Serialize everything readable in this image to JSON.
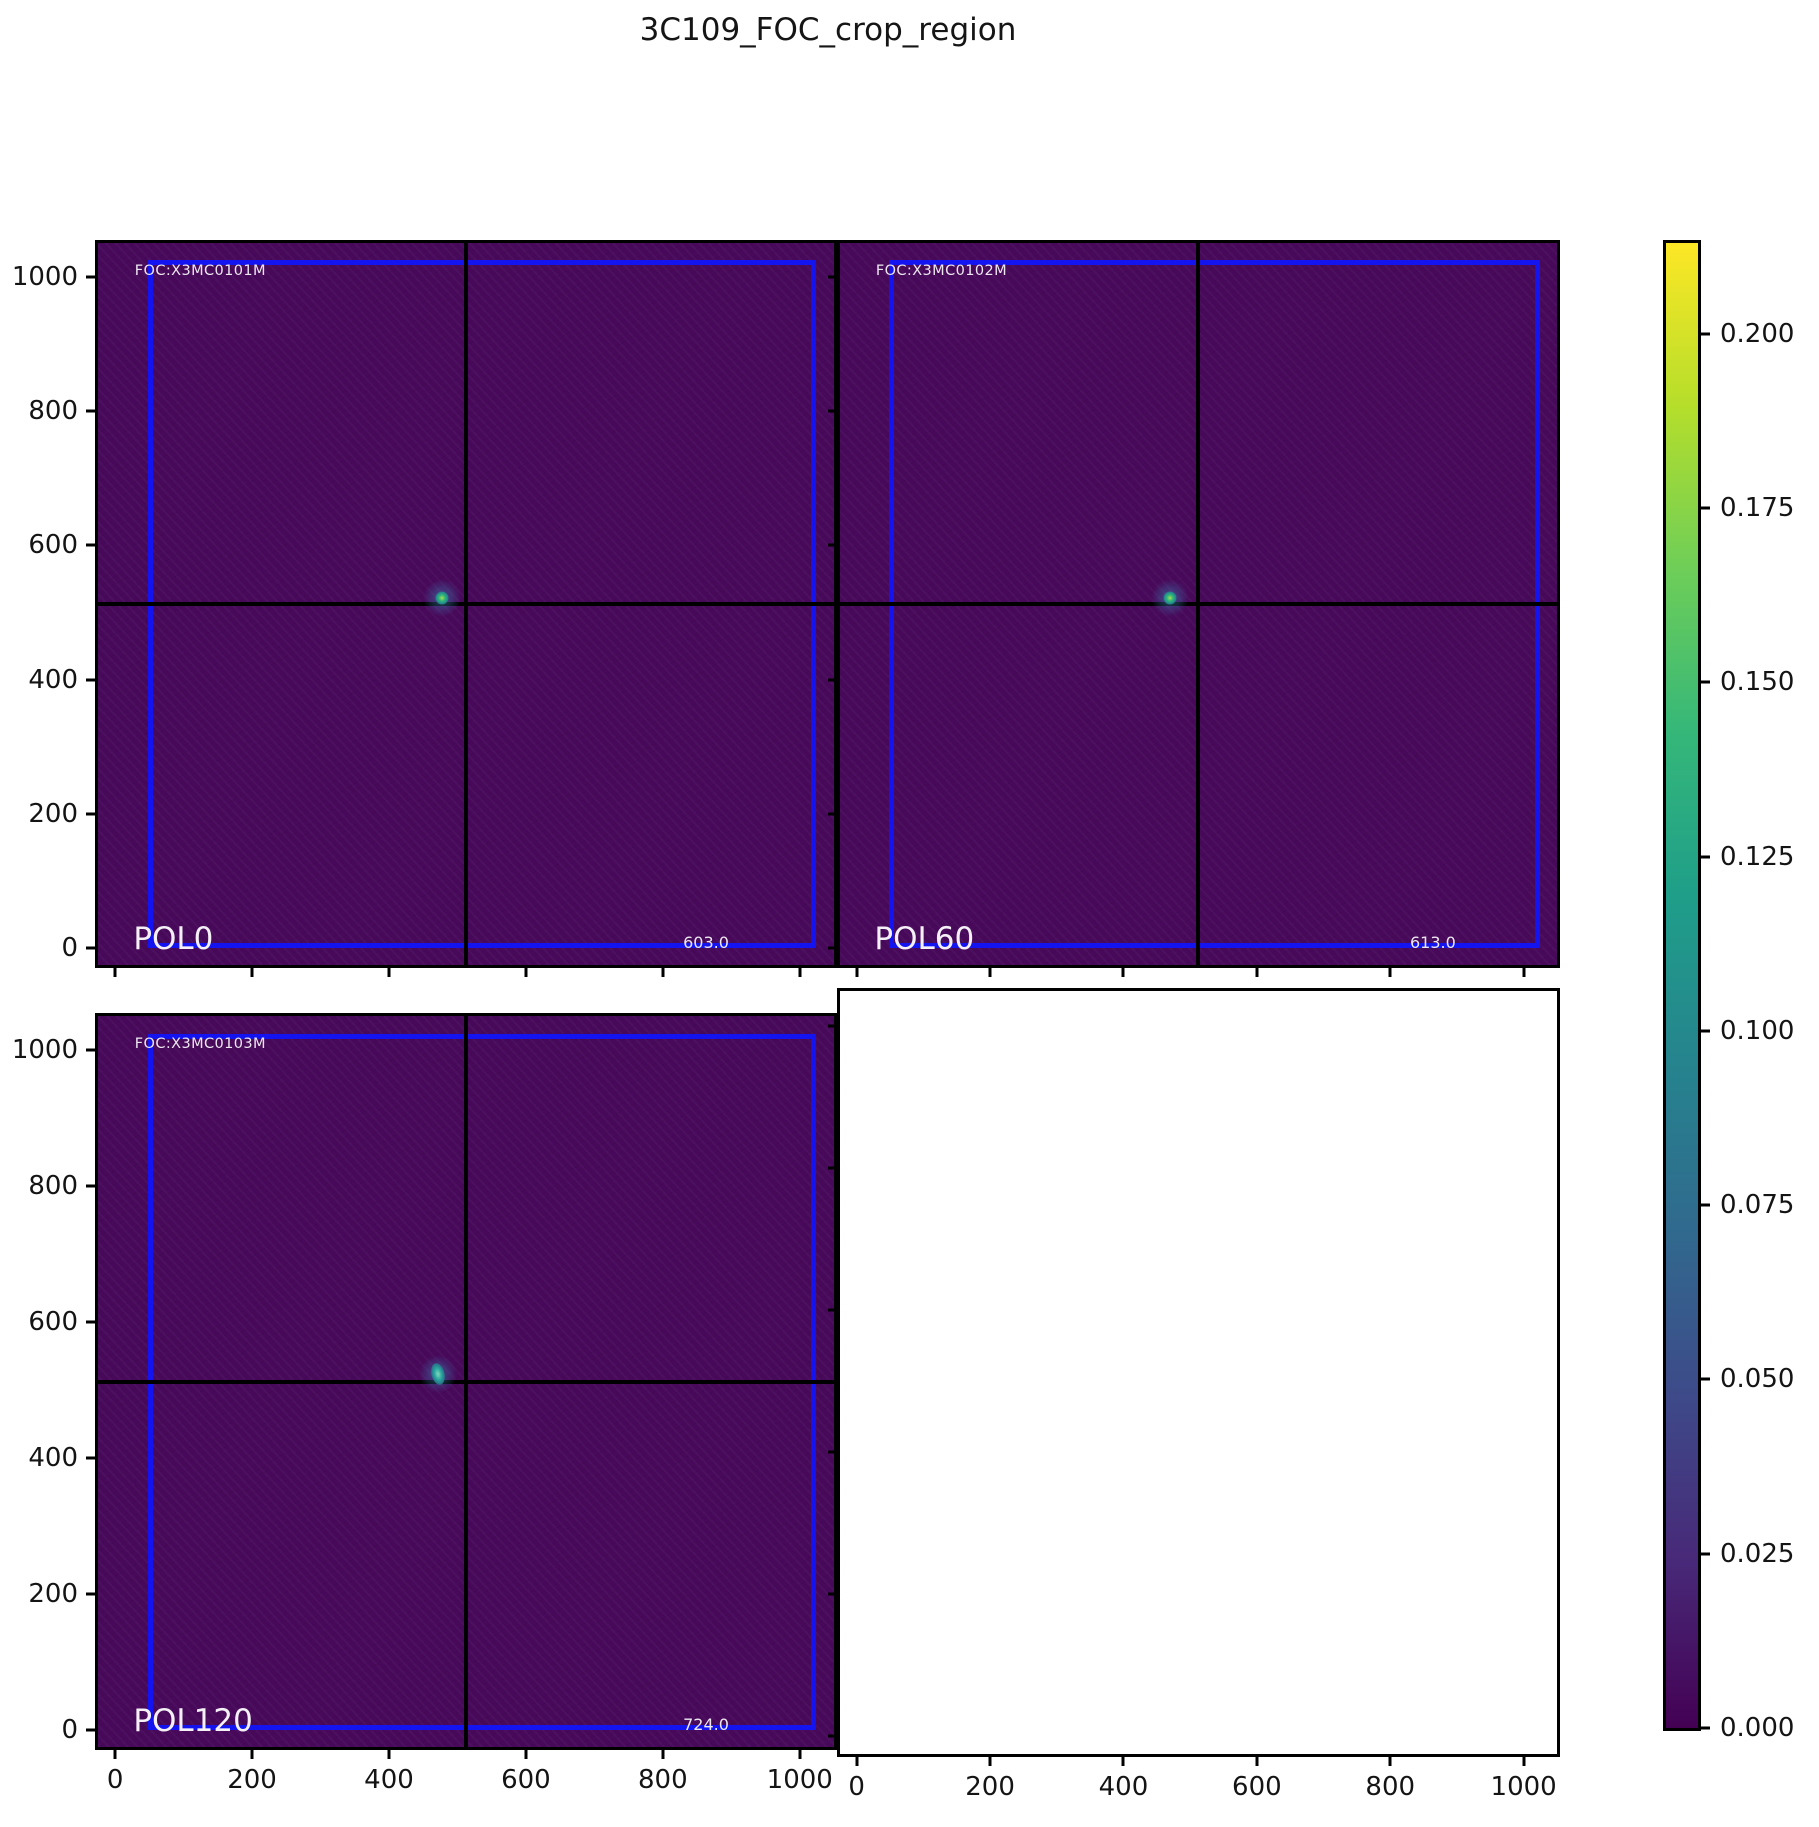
{
  "title": "3C109_FOC_crop_region",
  "panels": [
    {
      "position": "top-left",
      "foc_label": "FOC:X3MC0101M",
      "pol_label": "POL0",
      "value_label": "603.0",
      "empty": false
    },
    {
      "position": "top-right",
      "foc_label": "FOC:X3MC0102M",
      "pol_label": "POL60",
      "value_label": "613.0",
      "empty": false
    },
    {
      "position": "bottom-left",
      "foc_label": "FOC:X3MC0103M",
      "pol_label": "POL120",
      "value_label": "724.0",
      "empty": false
    },
    {
      "position": "bottom-right",
      "empty": true
    }
  ],
  "axes": {
    "tick_values": [
      0,
      200,
      400,
      600,
      800,
      1000
    ],
    "x_tick_labels": [
      "0",
      "200",
      "400",
      "600",
      "800",
      "1000"
    ],
    "y_tick_labels": [
      "0",
      "200",
      "400",
      "600",
      "800",
      "1000"
    ]
  },
  "colorbar": {
    "colormap": "viridis",
    "vmin": 0.0,
    "vmax": 0.213,
    "tick_values": [
      0.2,
      0.175,
      0.15,
      0.125,
      0.1,
      0.075,
      0.05,
      0.025,
      0.0
    ],
    "tick_labels": [
      "0.200",
      "0.175",
      "0.150",
      "0.125",
      "0.100",
      "0.075",
      "0.050",
      "0.025",
      "0.000"
    ]
  },
  "colors": {
    "figure_background": "#ffffff",
    "image_background_viridis_floor": "#48095b",
    "crop_rectangle_blue": "#1414f0",
    "crosshair_black": "#000000",
    "panel_text_white": "#f4f0f6",
    "colormap_low": "#440154",
    "colormap_high": "#fde725"
  },
  "chart_data": {
    "type": "heatmap",
    "title": "3C109_FOC_crop_region",
    "layout": "2x2 grid of image subplots; bottom-right axes is empty/blank; shared 0-1000 pixel axes; vertical colorbar on the right",
    "colormap": "viridis",
    "color_range": [
      0.0,
      0.213
    ],
    "colorbar_ticks": [
      0.0,
      0.025,
      0.05,
      0.075,
      0.1,
      0.125,
      0.15,
      0.175,
      0.2
    ],
    "x_range": [
      -25,
      1050
    ],
    "y_range": [
      -25,
      1050
    ],
    "x_ticks": [
      0,
      200,
      400,
      600,
      800,
      1000
    ],
    "y_ticks": [
      0,
      200,
      400,
      600,
      800,
      1000
    ],
    "crop_region_rect": {
      "x": [
        48,
        1024
      ],
      "y": [
        0,
        1024
      ]
    },
    "crosshair_xy": [
      512,
      512
    ],
    "panels": [
      {
        "pol_angle": "POL0",
        "dataset": "FOC:X3MC0101M",
        "exposure_value": 603.0,
        "point_source_xy": [
          478,
          522
        ],
        "description": "dark viridis background with single bright point source near chip-gap crosshair"
      },
      {
        "pol_angle": "POL60",
        "dataset": "FOC:X3MC0102M",
        "exposure_value": 613.0,
        "point_source_xy": [
          470,
          522
        ],
        "description": "dark viridis background with single bright point source near chip-gap crosshair"
      },
      {
        "pol_angle": "POL120",
        "dataset": "FOC:X3MC0103M",
        "exposure_value": 724.0,
        "point_source_xy": [
          472,
          524
        ],
        "description": "dark viridis background with slightly elongated bright source near chip-gap crosshair"
      },
      {
        "pol_angle": null,
        "dataset": null,
        "exposure_value": null,
        "point_source_xy": null,
        "description": "empty white axes"
      }
    ]
  }
}
